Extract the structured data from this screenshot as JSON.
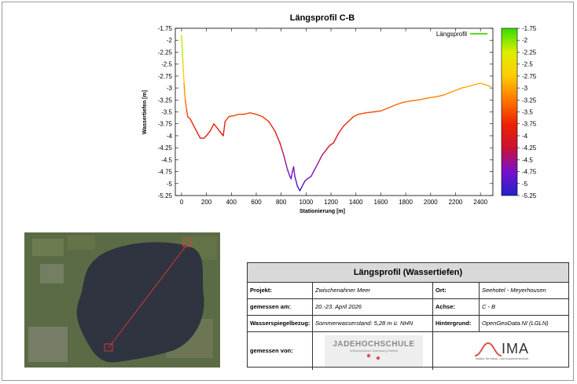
{
  "chart_data": {
    "type": "line",
    "title": "Längsprofil C-B",
    "xlabel": "Stationierung [m]",
    "ylabel": "Wassertiefen [m]",
    "xlim": [
      -50,
      2500
    ],
    "ylim": [
      -5.25,
      -1.75
    ],
    "xticks": [
      0,
      200,
      400,
      600,
      800,
      1000,
      1200,
      1400,
      1600,
      1800,
      2000,
      2200,
      2400
    ],
    "yticks": [
      -1.75,
      -2,
      -2.25,
      -2.5,
      -2.75,
      -3,
      -3.25,
      -3.5,
      -3.75,
      -4,
      -4.25,
      -4.5,
      -4.75,
      -5,
      -5.25
    ],
    "legend": {
      "position": "top-right",
      "entry": "Längsprofil",
      "color": "#55dd22"
    },
    "colorbar": {
      "min": -5.25,
      "max": -1.75,
      "ticks": [
        -1.75,
        -2,
        -2.25,
        -2.5,
        -2.75,
        -3,
        -3.25,
        -3.5,
        -3.75,
        -4,
        -4.25,
        -4.5,
        -4.75,
        -5,
        -5.25
      ],
      "colors": [
        "#2222cc",
        "#7711cc",
        "#cc1133",
        "#ee2200",
        "#ff7700",
        "#ffcc00",
        "#ddee00",
        "#33dd00"
      ]
    },
    "series": [
      {
        "name": "Längsprofil",
        "x": [
          0,
          10,
          20,
          30,
          40,
          50,
          70,
          90,
          120,
          150,
          180,
          200,
          230,
          260,
          290,
          320,
          335,
          350,
          380,
          420,
          460,
          500,
          550,
          600,
          650,
          700,
          750,
          790,
          820,
          850,
          870,
          880,
          890,
          900,
          910,
          930,
          950,
          970,
          990,
          1010,
          1040,
          1070,
          1100,
          1130,
          1160,
          1190,
          1220,
          1260,
          1300,
          1340,
          1380,
          1420,
          1480,
          1540,
          1600,
          1660,
          1720,
          1780,
          1840,
          1900,
          1960,
          2000,
          2050,
          2100,
          2150,
          2200,
          2250,
          2300,
          2350,
          2400,
          2440,
          2480
        ],
        "y": [
          -1.9,
          -2.4,
          -2.9,
          -3.25,
          -3.45,
          -3.6,
          -3.65,
          -3.75,
          -3.9,
          -4.05,
          -4.05,
          -4.0,
          -3.9,
          -3.75,
          -3.85,
          -3.95,
          -4.0,
          -3.7,
          -3.6,
          -3.58,
          -3.55,
          -3.55,
          -3.52,
          -3.55,
          -3.6,
          -3.7,
          -3.9,
          -4.15,
          -4.4,
          -4.7,
          -4.85,
          -4.9,
          -4.75,
          -4.65,
          -4.85,
          -5.05,
          -5.15,
          -5.05,
          -4.95,
          -4.9,
          -4.85,
          -4.7,
          -4.55,
          -4.4,
          -4.3,
          -4.2,
          -4.15,
          -3.95,
          -3.8,
          -3.7,
          -3.6,
          -3.55,
          -3.52,
          -3.5,
          -3.48,
          -3.42,
          -3.35,
          -3.3,
          -3.27,
          -3.25,
          -3.22,
          -3.2,
          -3.18,
          -3.15,
          -3.1,
          -3.05,
          -3.0,
          -2.97,
          -2.93,
          -2.9,
          -2.93,
          -2.97
        ]
      }
    ]
  },
  "info": {
    "title": "Längsprofil (Wassertiefen)",
    "rows": [
      {
        "label1": "Projekt:",
        "value1": "Zwischenahner Meer",
        "label2": "Ort:",
        "value2": "Seehotel - Meyerhousen"
      },
      {
        "label1": "gemessen am:",
        "value1": "20.-23. April 2026",
        "label2": "Achse:",
        "value2": "C - B"
      },
      {
        "label1": "Wasserspiegelbezug:",
        "value1": "Sommerwasserstand: 5,28 m ü. NHN",
        "label2": "Hintergrund:",
        "value2": "OpenGeoData.NI (LGLN)"
      }
    ],
    "measured_by_label": "gemessen von:",
    "logo1": {
      "name": "JADEHOCHSCHULE",
      "sub": "Wilhelmshaven Oldenburg Elsfleth"
    },
    "logo2": {
      "name": "IMA",
      "sub": "Institut für Mess- und Auswertetechnik"
    }
  },
  "map": {
    "water_color": "#2f3440",
    "land_color": "#5b6b45",
    "transect_color": "#e03a3a"
  }
}
